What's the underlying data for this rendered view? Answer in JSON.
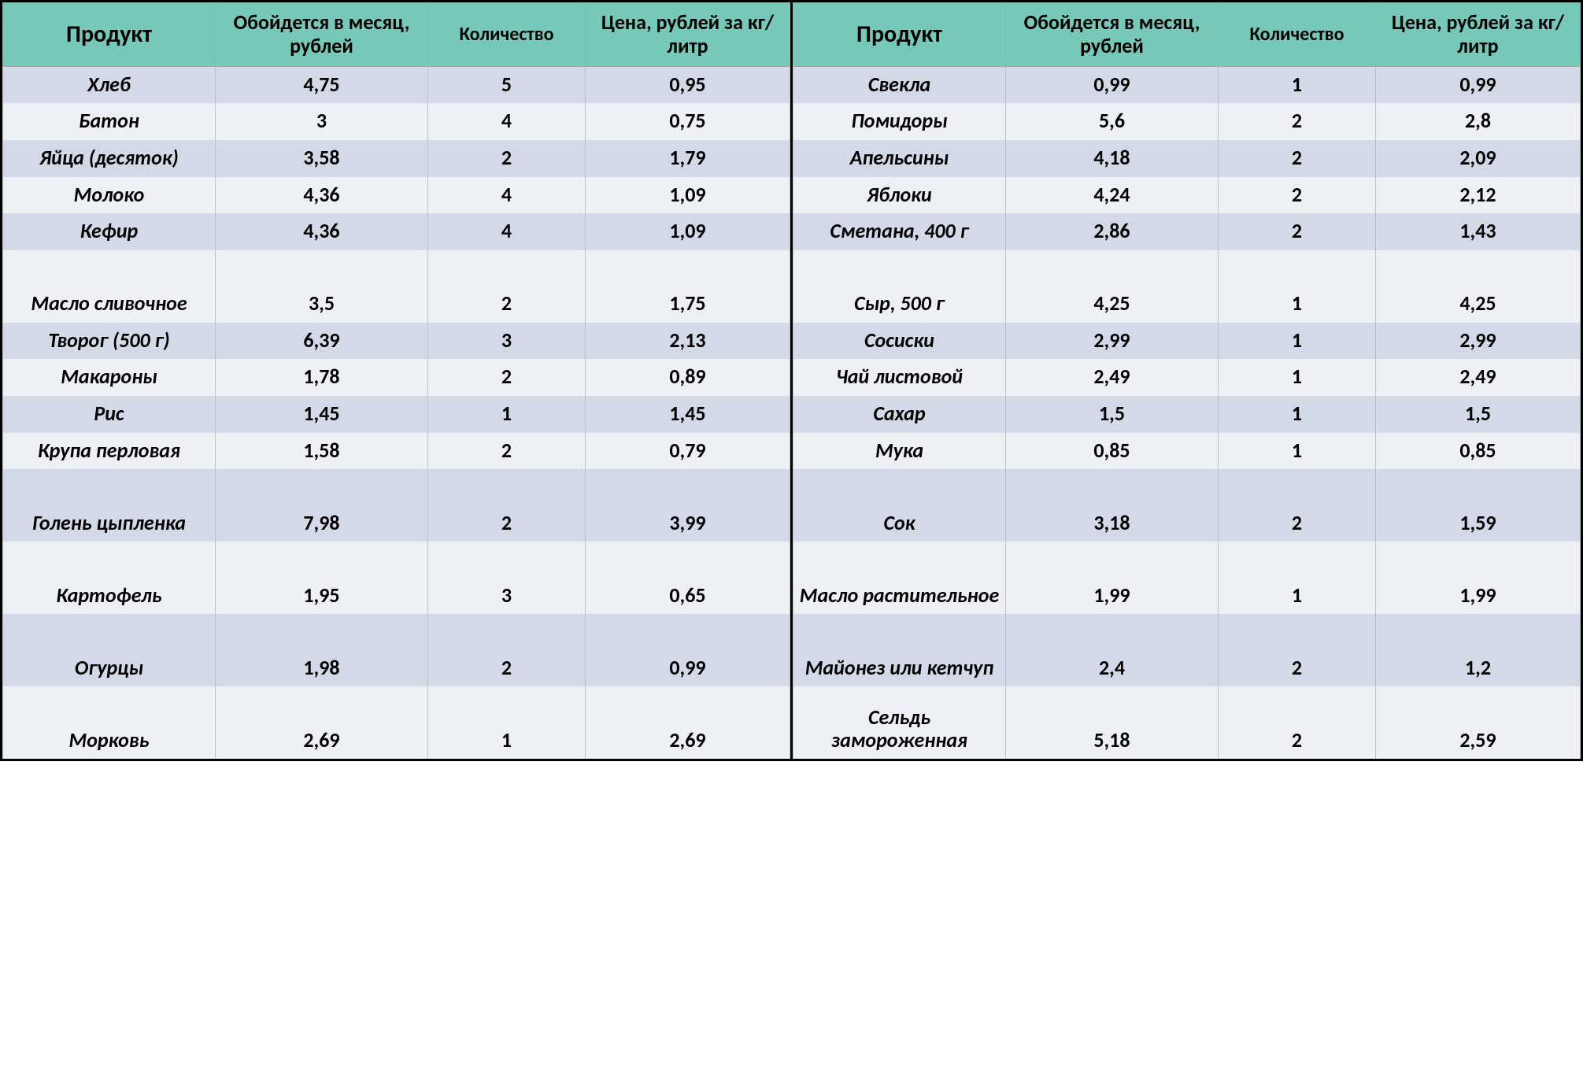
{
  "colors": {
    "header_bg": "#76c9b9",
    "row_odd_bg": "#d3d9e6",
    "row_even_bg": "#edf0f5",
    "outer_border": "#000000",
    "inner_border": "#b8c2d1",
    "text": "#000000"
  },
  "typography": {
    "header_fontsize_pt": 20,
    "header_product_fontsize_pt": 22,
    "cell_fontsize_pt": 20,
    "font_family": "Calibri",
    "header_weight": "bold",
    "cell_weight": "bold",
    "product_name_style": "italic"
  },
  "headers": {
    "product": "Продукт",
    "cost": "Обойдется в месяц, рублей",
    "qty": "Количество",
    "price": "Цена, рублей за кг/литр"
  },
  "left": [
    {
      "product": "Хлеб",
      "cost": "4,75",
      "qty": "5",
      "price": "0,95"
    },
    {
      "product": "Батон",
      "cost": "3",
      "qty": "4",
      "price": "0,75"
    },
    {
      "product": "Яйца (десяток)",
      "cost": "3,58",
      "qty": "2",
      "price": "1,79"
    },
    {
      "product": "Молоко",
      "cost": "4,36",
      "qty": "4",
      "price": "1,09"
    },
    {
      "product": "Кефир",
      "cost": "4,36",
      "qty": "4",
      "price": "1,09"
    },
    {
      "product": "Масло сливочное",
      "cost": "3,5",
      "qty": "2",
      "price": "1,75",
      "tall": true
    },
    {
      "product": "Творог (500 г)",
      "cost": "6,39",
      "qty": "3",
      "price": "2,13"
    },
    {
      "product": "Макароны",
      "cost": "1,78",
      "qty": "2",
      "price": "0,89"
    },
    {
      "product": "Рис",
      "cost": "1,45",
      "qty": "1",
      "price": "1,45"
    },
    {
      "product": "Крупа перловая",
      "cost": "1,58",
      "qty": "2",
      "price": "0,79"
    },
    {
      "product": "Голень цыпленка",
      "cost": "7,98",
      "qty": "2",
      "price": "3,99",
      "tall": true
    },
    {
      "product": "Картофель",
      "cost": "1,95",
      "qty": "3",
      "price": "0,65",
      "tall": true
    },
    {
      "product": "Огурцы",
      "cost": "1,98",
      "qty": "2",
      "price": "0,99",
      "tall": true
    },
    {
      "product": "Морковь",
      "cost": "2,69",
      "qty": "1",
      "price": "2,69",
      "tall": true
    }
  ],
  "right": [
    {
      "product": "Свекла",
      "cost": "0,99",
      "qty": "1",
      "price": "0,99"
    },
    {
      "product": "Помидоры",
      "cost": "5,6",
      "qty": "2",
      "price": "2,8"
    },
    {
      "product": "Апельсины",
      "cost": "4,18",
      "qty": "2",
      "price": "2,09"
    },
    {
      "product": "Яблоки",
      "cost": "4,24",
      "qty": "2",
      "price": "2,12"
    },
    {
      "product": "Сметана, 400 г",
      "cost": "2,86",
      "qty": "2",
      "price": "1,43"
    },
    {
      "product": "Сыр, 500 г",
      "cost": "4,25",
      "qty": "1",
      "price": "4,25",
      "tall": true
    },
    {
      "product": "Сосиски",
      "cost": "2,99",
      "qty": "1",
      "price": "2,99"
    },
    {
      "product": "Чай листовой",
      "cost": "2,49",
      "qty": "1",
      "price": "2,49"
    },
    {
      "product": "Сахар",
      "cost": "1,5",
      "qty": "1",
      "price": "1,5"
    },
    {
      "product": "Мука",
      "cost": "0,85",
      "qty": "1",
      "price": "0,85"
    },
    {
      "product": "Сок",
      "cost": "3,18",
      "qty": "2",
      "price": "1,59",
      "tall": true
    },
    {
      "product": "Масло растительное",
      "cost": "1,99",
      "qty": "1",
      "price": "1,99",
      "tall": true
    },
    {
      "product": "Майонез или кетчуп",
      "cost": "2,4",
      "qty": "2",
      "price": "1,2",
      "tall": true
    },
    {
      "product": "Сельдь замороженная",
      "cost": "5,18",
      "qty": "2",
      "price": "2,59",
      "tall": true
    }
  ]
}
